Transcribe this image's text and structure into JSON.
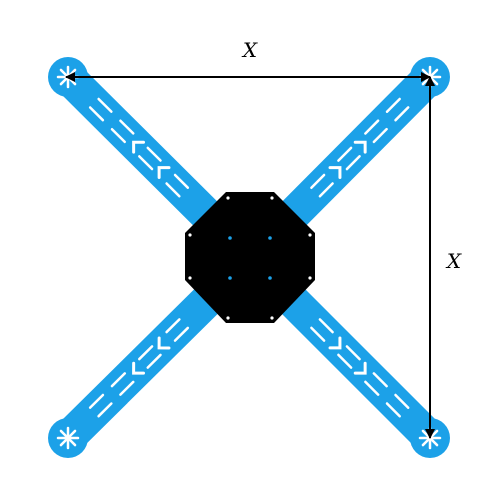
{
  "diagram": {
    "dimension_labels": {
      "horizontal": "X",
      "vertical": "X"
    },
    "colors": {
      "arm": "#1ca1e8",
      "center_plate": "#000000",
      "plate_holes": "#ffffff",
      "center_dots": "#1ca1e8",
      "dimension_lines": "#000000",
      "background": "#ffffff"
    },
    "parts": [
      "quadcopter-frame",
      "four-arms",
      "octagonal-center-plate",
      "motor-mounts"
    ]
  }
}
